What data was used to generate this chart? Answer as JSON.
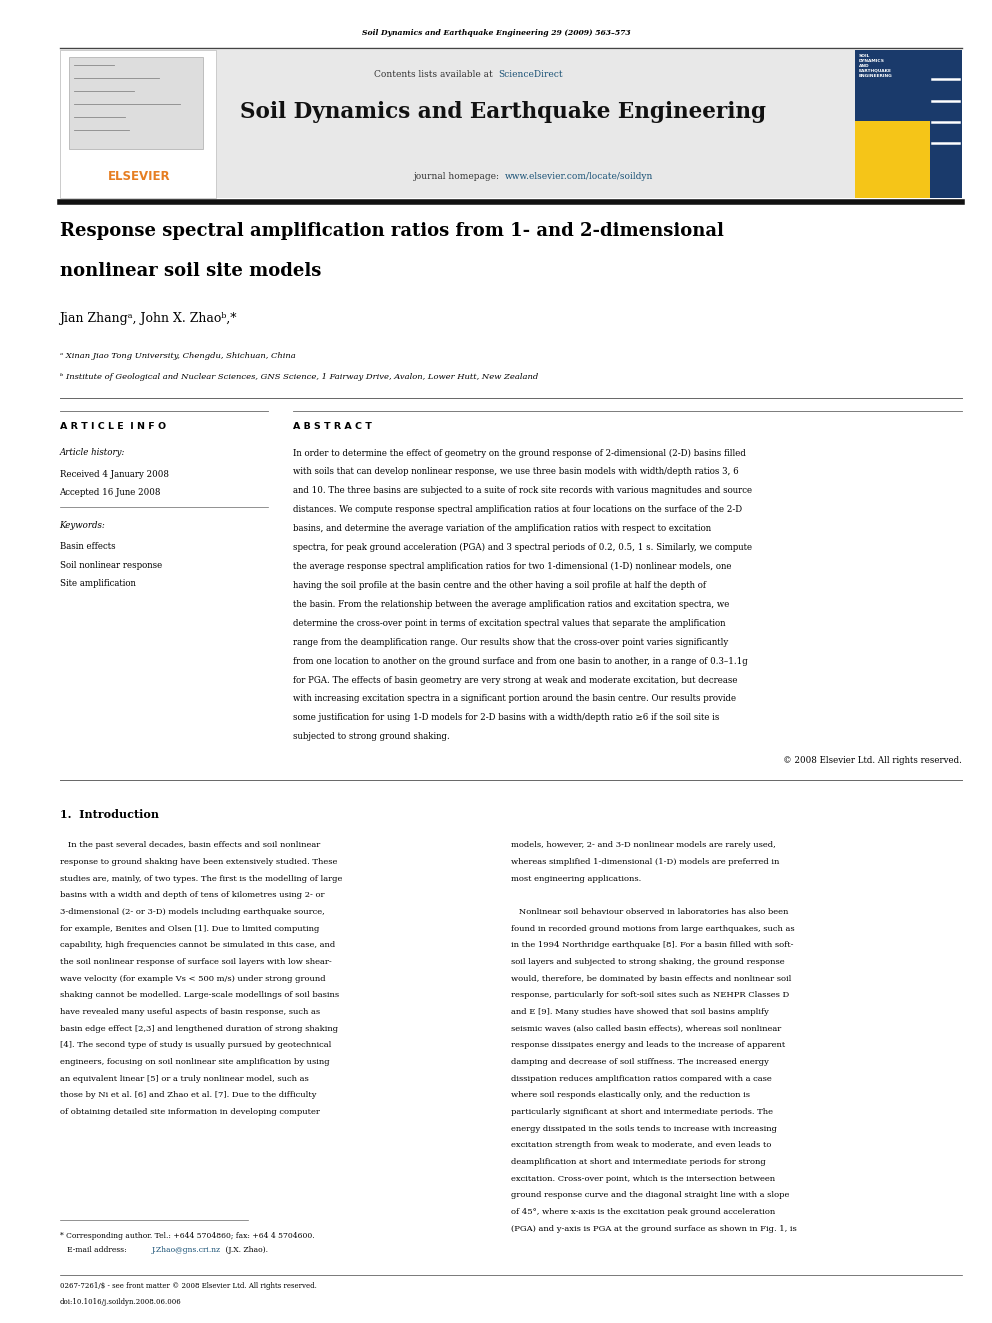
{
  "page_width": 9.92,
  "page_height": 13.23,
  "bg_color": "#ffffff",
  "journal_ref": "Soil Dynamics and Earthquake Engineering 29 (2009) 563–573",
  "header_bg": "#e8e8e8",
  "header_contents": "Contents lists available at ",
  "sciencedirect_text": "ScienceDirect",
  "sciencedirect_color": "#1a5276",
  "journal_title": "Soil Dynamics and Earthquake Engineering",
  "homepage_label": "journal homepage: ",
  "homepage_url": "www.elsevier.com/locate/soildyn",
  "homepage_color": "#1a5276",
  "elsevier_color": "#e67e22",
  "paper_title_line1": "Response spectral amplification ratios from 1- and 2-dimensional",
  "paper_title_line2": "nonlinear soil site models",
  "authors": "Jian Zhangᵃ, John X. Zhaoᵇ,*",
  "affil_a": "ᵃ Xinan Jiao Tong University, Chengdu, Shichuan, China",
  "affil_b": "ᵇ Institute of Geological and Nuclear Sciences, GNS Science, 1 Fairway Drive, Avalon, Lower Hutt, New Zealand",
  "article_info_title": "A R T I C L E  I N F O",
  "article_history_title": "Article history:",
  "received": "Received 4 January 2008",
  "accepted": "Accepted 16 June 2008",
  "keywords_title": "Keywords:",
  "kw1": "Basin effects",
  "kw2": "Soil nonlinear response",
  "kw3": "Site amplification",
  "abstract_title": "A B S T R A C T",
  "abstract_text": "In order to determine the effect of geometry on the ground response of 2-dimensional (2-D) basins filled\nwith soils that can develop nonlinear response, we use three basin models with width/depth ratios 3, 6\nand 10. The three basins are subjected to a suite of rock site records with various magnitudes and source\ndistances. We compute response spectral amplification ratios at four locations on the surface of the 2-D\nbasins, and determine the average variation of the amplification ratios with respect to excitation\nspectra, for peak ground acceleration (PGA) and 3 spectral periods of 0.2, 0.5, 1 s. Similarly, we compute\nthe average response spectral amplification ratios for two 1-dimensional (1-D) nonlinear models, one\nhaving the soil profile at the basin centre and the other having a soil profile at half the depth of\nthe basin. From the relationship between the average amplification ratios and excitation spectra, we\ndetermine the cross-over point in terms of excitation spectral values that separate the amplification\nrange from the deamplification range. Our results show that the cross-over point varies significantly\nfrom one location to another on the ground surface and from one basin to another, in a range of 0.3–1.1g\nfor PGA. The effects of basin geometry are very strong at weak and moderate excitation, but decrease\nwith increasing excitation spectra in a significant portion around the basin centre. Our results provide\nsome justification for using 1-D models for 2-D basins with a width/depth ratio ≥6 if the soil site is\nsubjected to strong ground shaking.",
  "copyright": "© 2008 Elsevier Ltd. All rights reserved.",
  "section_title": "1.  Introduction",
  "intro_col1": [
    "   In the past several decades, basin effects and soil nonlinear",
    "response to ground shaking have been extensively studied. These",
    "studies are, mainly, of two types. The first is the modelling of large",
    "basins with a width and depth of tens of kilometres using 2- or",
    "3-dimensional (2- or 3-D) models including earthquake source,",
    "for example, Benites and Olsen [1]. Due to limited computing",
    "capability, high frequencies cannot be simulated in this case, and",
    "the soil nonlinear response of surface soil layers with low shear-",
    "wave velocity (for example Vs < 500 m/s) under strong ground",
    "shaking cannot be modelled. Large-scale modellings of soil basins",
    "have revealed many useful aspects of basin response, such as",
    "basin edge effect [2,3] and lengthened duration of strong shaking",
    "[4]. The second type of study is usually pursued by geotechnical",
    "engineers, focusing on soil nonlinear site amplification by using",
    "an equivalent linear [5] or a truly nonlinear model, such as",
    "those by Ni et al. [6] and Zhao et al. [7]. Due to the difficulty",
    "of obtaining detailed site information in developing computer"
  ],
  "intro_col2": [
    "models, however, 2- and 3-D nonlinear models are rarely used,",
    "whereas simplified 1-dimensional (1-D) models are preferred in",
    "most engineering applications.",
    "",
    "   Nonlinear soil behaviour observed in laboratories has also been",
    "found in recorded ground motions from large earthquakes, such as",
    "in the 1994 Northridge earthquake [8]. For a basin filled with soft-",
    "soil layers and subjected to strong shaking, the ground response",
    "would, therefore, be dominated by basin effects and nonlinear soil",
    "response, particularly for soft-soil sites such as NEHPR Classes D",
    "and E [9]. Many studies have showed that soil basins amplify",
    "seismic waves (also called basin effects), whereas soil nonlinear",
    "response dissipates energy and leads to the increase of apparent",
    "damping and decrease of soil stiffness. The increased energy",
    "dissipation reduces amplification ratios compared with a case",
    "where soil responds elastically only, and the reduction is",
    "particularly significant at short and intermediate periods. The",
    "energy dissipated in the soils tends to increase with increasing",
    "excitation strength from weak to moderate, and even leads to",
    "deamplification at short and intermediate periods for strong",
    "excitation. Cross-over point, which is the intersection between",
    "ground response curve and the diagonal straight line with a slope",
    "of 45°, where x-axis is the excitation peak ground acceleration",
    "(PGA) and y-axis is PGA at the ground surface as shown in Fig. 1, is"
  ],
  "footnote_star": "* Corresponding author. Tel.: +644 5704860; fax: +64 4 5704600.",
  "footnote_email_pre": "   E-mail address: ",
  "footnote_email_link": "J.Zhao@gns.cri.nz",
  "footnote_email_post": " (J.X. Zhao).",
  "footer_issn": "0267-7261/$ - see front matter © 2008 Elsevier Ltd. All rights reserved.",
  "footer_doi": "doi:10.1016/j.soildyn.2008.06.006"
}
